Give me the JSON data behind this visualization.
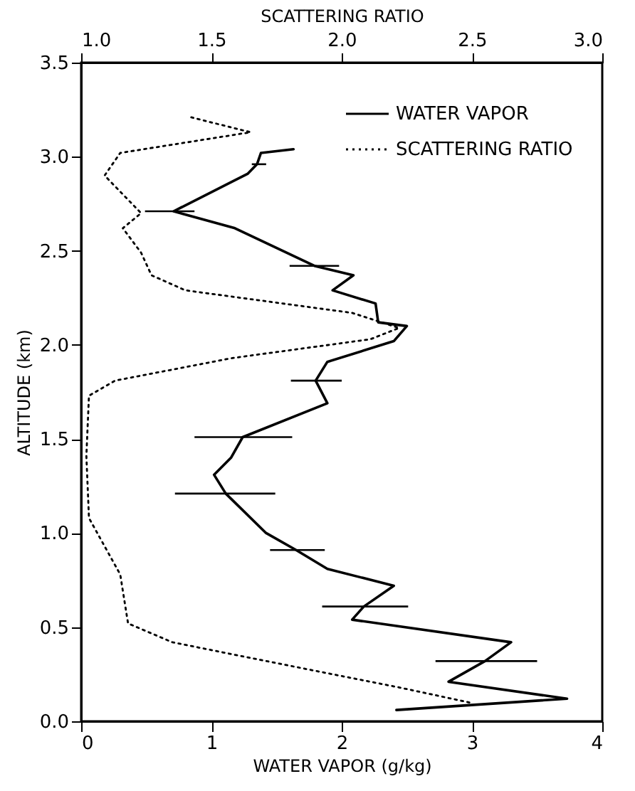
{
  "chart_data": {
    "type": "line",
    "xlabel": "WATER VAPOR (g/kg)",
    "x2label": "SCATTERING RATIO",
    "ylabel": "ALTITUDE (km)",
    "xlim": [
      0,
      4
    ],
    "xticks": [
      0,
      1,
      2,
      3,
      4
    ],
    "x2lim": [
      1.0,
      3.0
    ],
    "x2ticks": [
      {
        "value": 1,
        "label": "1.0"
      },
      {
        "value": 1.5,
        "label": "1.5"
      },
      {
        "value": 2,
        "label": "2.0"
      },
      {
        "value": 2.5,
        "label": "2.5"
      },
      {
        "value": 3,
        "label": "3.0"
      }
    ],
    "ylim": [
      0,
      3.5
    ],
    "yticks": [
      {
        "value": 0,
        "label": "0.0"
      },
      {
        "value": 0.5,
        "label": "0.5"
      },
      {
        "value": 1,
        "label": "1.0"
      },
      {
        "value": 1.5,
        "label": "1.5"
      },
      {
        "value": 2,
        "label": "2.0"
      },
      {
        "value": 2.5,
        "label": "2.5"
      },
      {
        "value": 3,
        "label": "3.0"
      },
      {
        "value": 3.5,
        "label": "3.5"
      }
    ],
    "legend": "top right",
    "grid": false,
    "marker": "none",
    "series": [
      {
        "name": "WATER VAPOR",
        "color": "#000000",
        "line_style": "solid",
        "x": [
          2.42,
          3.73,
          2.82,
          3.1,
          3.3,
          2.08,
          2.17,
          2.4,
          1.89,
          1.65,
          1.42,
          1.11,
          1.02,
          1.15,
          1.24,
          1.89,
          1.8,
          1.89,
          2.4,
          2.5,
          2.28,
          2.26,
          1.93,
          2.09,
          1.79,
          1.18,
          0.71,
          1.28,
          1.35,
          1.38,
          1.63
        ],
        "values": [
          0.06,
          0.12,
          0.21,
          0.32,
          0.42,
          0.54,
          0.61,
          0.72,
          0.81,
          0.91,
          1.0,
          1.21,
          1.31,
          1.4,
          1.51,
          1.69,
          1.81,
          1.91,
          2.02,
          2.1,
          2.12,
          2.22,
          2.29,
          2.37,
          2.42,
          2.62,
          2.71,
          2.91,
          2.96,
          3.02,
          3.04
        ],
        "xerrors": [
          null,
          null,
          null,
          [
            2.72,
            3.5
          ],
          null,
          null,
          [
            1.85,
            2.51
          ],
          null,
          null,
          [
            1.45,
            1.87
          ],
          null,
          [
            0.72,
            1.49
          ],
          null,
          null,
          [
            0.87,
            1.62
          ],
          null,
          [
            1.61,
            2.0
          ],
          null,
          null,
          null,
          null,
          null,
          null,
          null,
          [
            1.6,
            1.98
          ],
          null,
          [
            0.49,
            0.87
          ],
          null,
          [
            1.31,
            1.42
          ],
          null,
          null
        ]
      },
      {
        "name": "SCATTERING RATIO",
        "color": "#000000",
        "line_style": "dotted",
        "axis": "x2",
        "x": [
          2.49,
          2.22,
          1.71,
          1.35,
          1.18,
          1.15,
          1.03,
          1.02,
          1.03,
          1.13,
          1.58,
          2.11,
          2.22,
          2.04,
          1.4,
          1.27,
          1.23,
          1.16,
          1.23,
          1.09,
          1.15,
          1.65,
          1.42
        ],
        "values": [
          0.1,
          0.18,
          0.32,
          0.42,
          0.52,
          0.78,
          1.08,
          1.41,
          1.73,
          1.81,
          1.93,
          2.03,
          2.09,
          2.17,
          2.29,
          2.37,
          2.49,
          2.62,
          2.7,
          2.9,
          3.02,
          3.13,
          3.21
        ]
      }
    ]
  }
}
